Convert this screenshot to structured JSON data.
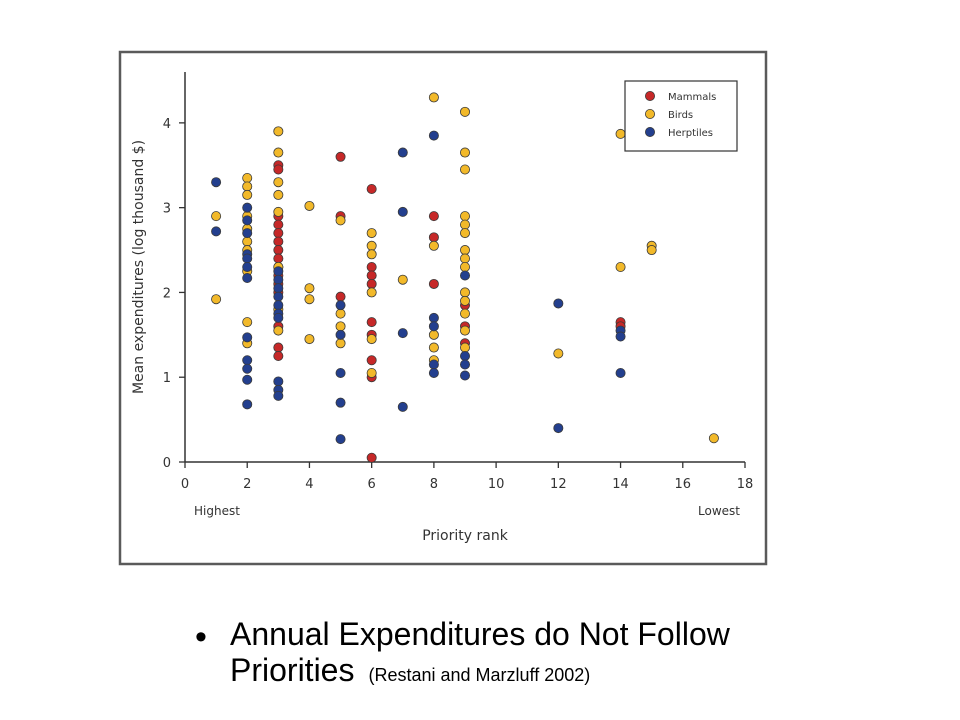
{
  "chart_data": {
    "type": "scatter",
    "xlabel": "Priority rank",
    "ylabel": "Mean expenditures (log thousand $)",
    "x_ticks": [
      "0",
      "2",
      "4",
      "6",
      "8",
      "10",
      "12",
      "14",
      "16",
      "18"
    ],
    "y_ticks": [
      "0",
      "1",
      "2",
      "3",
      "4"
    ],
    "xlim": [
      0,
      18
    ],
    "ylim": [
      0,
      4.6
    ],
    "x_annotations": {
      "low_end": "Highest",
      "high_end": "Lowest"
    },
    "legend_position": "top-right",
    "grid": false,
    "series": [
      {
        "name": "Mammals",
        "color": "#c62828",
        "points": [
          [
            3,
            3.5
          ],
          [
            3,
            3.45
          ],
          [
            3,
            2.9
          ],
          [
            3,
            2.8
          ],
          [
            3,
            2.7
          ],
          [
            3,
            2.6
          ],
          [
            3,
            2.5
          ],
          [
            3,
            2.4
          ],
          [
            3,
            2.3
          ],
          [
            3,
            2.2
          ],
          [
            3,
            2.1
          ],
          [
            3,
            2.0
          ],
          [
            3,
            1.6
          ],
          [
            3,
            1.35
          ],
          [
            3,
            1.25
          ],
          [
            5,
            3.6
          ],
          [
            5,
            2.9
          ],
          [
            5,
            1.95
          ],
          [
            6,
            3.22
          ],
          [
            6,
            2.3
          ],
          [
            6,
            2.2
          ],
          [
            6,
            2.1
          ],
          [
            6,
            1.65
          ],
          [
            6,
            1.5
          ],
          [
            6,
            1.2
          ],
          [
            6,
            1.0
          ],
          [
            6,
            0.05
          ],
          [
            8,
            2.9
          ],
          [
            8,
            2.65
          ],
          [
            8,
            2.1
          ],
          [
            9,
            1.85
          ],
          [
            9,
            1.6
          ],
          [
            9,
            1.4
          ],
          [
            14,
            1.65
          ],
          [
            14,
            1.6
          ]
        ]
      },
      {
        "name": "Birds",
        "color": "#f2b92a",
        "points": [
          [
            1,
            2.9
          ],
          [
            1,
            1.92
          ],
          [
            2,
            3.35
          ],
          [
            2,
            3.25
          ],
          [
            2,
            3.15
          ],
          [
            2,
            2.9
          ],
          [
            2,
            2.75
          ],
          [
            2,
            2.6
          ],
          [
            2,
            2.5
          ],
          [
            2,
            2.25
          ],
          [
            2,
            1.65
          ],
          [
            2,
            1.4
          ],
          [
            3,
            3.9
          ],
          [
            3,
            3.65
          ],
          [
            3,
            3.3
          ],
          [
            3,
            3.15
          ],
          [
            3,
            2.95
          ],
          [
            3,
            2.3
          ],
          [
            3,
            1.8
          ],
          [
            3,
            1.55
          ],
          [
            4,
            3.02
          ],
          [
            4,
            2.05
          ],
          [
            4,
            1.92
          ],
          [
            4,
            1.45
          ],
          [
            5,
            2.85
          ],
          [
            5,
            1.75
          ],
          [
            5,
            1.6
          ],
          [
            5,
            1.4
          ],
          [
            6,
            2.7
          ],
          [
            6,
            2.55
          ],
          [
            6,
            2.45
          ],
          [
            6,
            2.0
          ],
          [
            6,
            1.45
          ],
          [
            6,
            1.05
          ],
          [
            7,
            2.15
          ],
          [
            8,
            4.3
          ],
          [
            8,
            2.55
          ],
          [
            8,
            1.5
          ],
          [
            8,
            1.35
          ],
          [
            8,
            1.2
          ],
          [
            9,
            4.13
          ],
          [
            9,
            3.65
          ],
          [
            9,
            3.45
          ],
          [
            9,
            2.9
          ],
          [
            9,
            2.8
          ],
          [
            9,
            2.7
          ],
          [
            9,
            2.5
          ],
          [
            9,
            2.4
          ],
          [
            9,
            2.3
          ],
          [
            9,
            2.0
          ],
          [
            9,
            1.9
          ],
          [
            9,
            1.75
          ],
          [
            9,
            1.55
          ],
          [
            9,
            1.35
          ],
          [
            12,
            1.28
          ],
          [
            14,
            3.87
          ],
          [
            14,
            2.3
          ],
          [
            15,
            2.55
          ],
          [
            15,
            2.5
          ],
          [
            17,
            0.28
          ]
        ]
      },
      {
        "name": "Herptiles",
        "color": "#233f8e",
        "points": [
          [
            1,
            3.3
          ],
          [
            1,
            2.72
          ],
          [
            2,
            3.0
          ],
          [
            2,
            2.85
          ],
          [
            2,
            2.7
          ],
          [
            2,
            2.45
          ],
          [
            2,
            2.4
          ],
          [
            2,
            2.3
          ],
          [
            2,
            2.17
          ],
          [
            2,
            1.47
          ],
          [
            2,
            1.2
          ],
          [
            2,
            1.1
          ],
          [
            2,
            0.97
          ],
          [
            2,
            0.68
          ],
          [
            3,
            2.25
          ],
          [
            3,
            2.15
          ],
          [
            3,
            2.05
          ],
          [
            3,
            1.95
          ],
          [
            3,
            1.85
          ],
          [
            3,
            1.75
          ],
          [
            3,
            1.7
          ],
          [
            3,
            0.95
          ],
          [
            3,
            0.85
          ],
          [
            3,
            0.78
          ],
          [
            5,
            1.85
          ],
          [
            5,
            1.5
          ],
          [
            5,
            1.05
          ],
          [
            5,
            0.7
          ],
          [
            5,
            0.27
          ],
          [
            7,
            3.65
          ],
          [
            7,
            2.95
          ],
          [
            7,
            1.52
          ],
          [
            7,
            0.65
          ],
          [
            8,
            3.85
          ],
          [
            8,
            1.7
          ],
          [
            8,
            1.6
          ],
          [
            8,
            1.15
          ],
          [
            8,
            1.05
          ],
          [
            9,
            2.2
          ],
          [
            9,
            1.25
          ],
          [
            9,
            1.15
          ],
          [
            9,
            1.02
          ],
          [
            12,
            1.87
          ],
          [
            12,
            0.4
          ],
          [
            14,
            1.55
          ],
          [
            14,
            1.48
          ],
          [
            14,
            1.05
          ]
        ]
      }
    ]
  },
  "caption": {
    "bullet": "•",
    "line1": "Annual Expenditures do Not Follow",
    "line2": "Priorities",
    "citation": "(Restani and Marzluff 2002)"
  }
}
